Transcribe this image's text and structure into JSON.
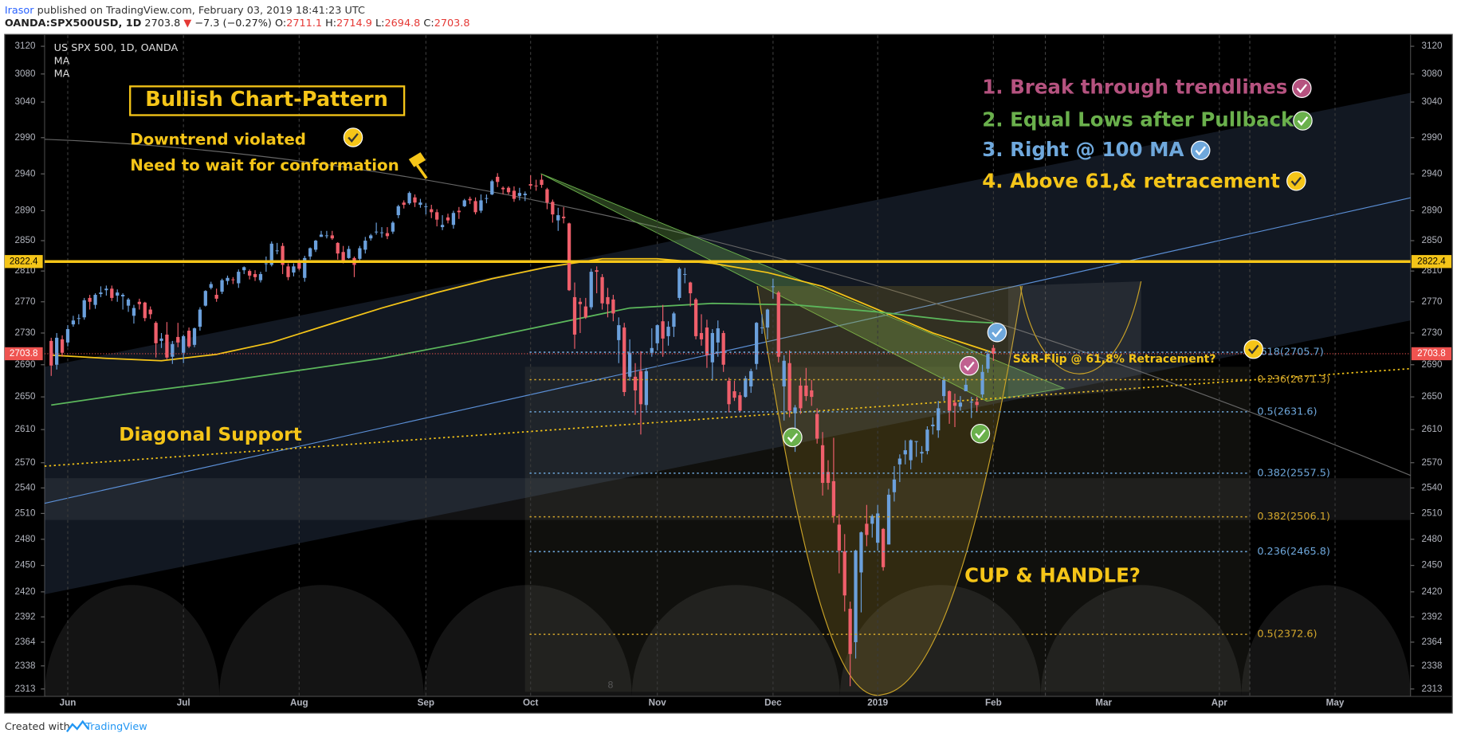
{
  "header": {
    "author": "Irasor",
    "published": "published on TradingView.com, February 03, 2019 18:41:23 UTC",
    "symbol": "OANDA:SPX500USD, 1D",
    "change_arrow": "▼",
    "change": "−7.3 (−0.27%)",
    "ohlc_labels": [
      "O:",
      "H:",
      "L:",
      "C:"
    ]
  },
  "footer": {
    "created": "Created with",
    "brand": "TradingView"
  },
  "chart_data": {
    "type": "candlestick",
    "legend_title": "US SPX 500, 1D, OANDA",
    "log": true,
    "up_color": "#6ba0dc",
    "down_color": "#ef5f6b",
    "xlim": [
      -1.2,
      246.7
    ],
    "xticks": [
      {
        "value": 3,
        "label": "Jun"
      },
      {
        "value": 24,
        "label": "Jul"
      },
      {
        "value": 45,
        "label": "Aug"
      },
      {
        "value": 68,
        "label": "Sep"
      },
      {
        "value": 87,
        "label": "Oct"
      },
      {
        "value": 110,
        "label": "Nov"
      },
      {
        "value": 131,
        "label": "Dec"
      },
      {
        "value": 150,
        "label": "2019"
      },
      {
        "value": 171,
        "label": "Feb"
      },
      {
        "value": 191,
        "label": "Mar"
      },
      {
        "value": 212,
        "label": "Apr"
      },
      {
        "value": 233,
        "label": "May"
      }
    ],
    "ylim": [
      2305,
      3136
    ],
    "yticks": [
      3120,
      3080,
      3040,
      2990,
      2940,
      2890,
      2850,
      2810,
      2770,
      2730,
      2690,
      2650,
      2610,
      2570,
      2540,
      2510,
      2480,
      2450,
      2420,
      2392,
      2364,
      2338,
      2313
    ],
    "open": [
      2720,
      2690,
      2722,
      2718,
      2741,
      2748,
      2750,
      2775,
      2766,
      2780,
      2785,
      2787,
      2778,
      2777,
      2765,
      2752,
      2770,
      2769,
      2760,
      2743,
      2720,
      2728,
      2700,
      2725,
      2705,
      2733,
      2715,
      2738,
      2765,
      2788,
      2779,
      2783,
      2797,
      2799,
      2794,
      2811,
      2810,
      2806,
      2798,
      2819,
      2818,
      2836,
      2843,
      2816,
      2808,
      2821,
      2801,
      2829,
      2838,
      2855,
      2856,
      2857,
      2847,
      2835,
      2827,
      2827,
      2826,
      2838,
      2853,
      2861,
      2860,
      2860,
      2862,
      2884,
      2901,
      2900,
      2908,
      2898,
      2896,
      2892,
      2888,
      2868,
      2881,
      2871,
      2890,
      2896,
      2906,
      2903,
      2890,
      2906,
      2912,
      2936,
      2921,
      2921,
      2917,
      2910,
      2911,
      2926,
      2924,
      2932,
      2919,
      2902,
      2877,
      2882,
      2873,
      2776,
      2770,
      2764,
      2763,
      2811,
      2802,
      2776,
      2773,
      2721,
      2737,
      2675,
      2675,
      2682,
      2640,
      2705,
      2717,
      2745,
      2726,
      2738,
      2775,
      2806,
      2795,
      2773,
      2730,
      2737,
      2693,
      2718,
      2730,
      2670,
      2657,
      2652,
      2650,
      2663,
      2691,
      2737,
      2737,
      2790,
      2782,
      2663,
      2692,
      2630,
      2664,
      2664,
      2658,
      2629,
      2591,
      2559,
      2548,
      2497,
      2466,
      2401,
      2364,
      2442,
      2498,
      2498,
      2476,
      2492,
      2474,
      2535,
      2568,
      2580,
      2573,
      2595,
      2581,
      2584,
      2614,
      2609,
      2651,
      2657,
      2643,
      2638,
      2657,
      2644,
      2644,
      2653,
      2685,
      2711.1
    ],
    "high": [
      2724,
      2730,
      2727,
      2740,
      2752,
      2754,
      2775,
      2779,
      2781,
      2790,
      2791,
      2791,
      2786,
      2781,
      2775,
      2766,
      2774,
      2770,
      2764,
      2745,
      2730,
      2744,
      2720,
      2743,
      2728,
      2737,
      2737,
      2763,
      2785,
      2796,
      2787,
      2800,
      2804,
      2802,
      2812,
      2816,
      2812,
      2811,
      2809,
      2829,
      2849,
      2847,
      2847,
      2820,
      2820,
      2825,
      2830,
      2841,
      2851,
      2863,
      2863,
      2863,
      2848,
      2843,
      2843,
      2829,
      2843,
      2855,
      2859,
      2874,
      2868,
      2868,
      2876,
      2898,
      2904,
      2916,
      2912,
      2906,
      2900,
      2898,
      2892,
      2884,
      2886,
      2890,
      2895,
      2906,
      2909,
      2908,
      2912,
      2912,
      2932,
      2941,
      2923,
      2923,
      2923,
      2921,
      2916,
      2938,
      2932,
      2939,
      2921,
      2905,
      2894,
      2895,
      2874,
      2795,
      2775,
      2775,
      2813,
      2816,
      2806,
      2788,
      2779,
      2750,
      2743,
      2722,
      2692,
      2707,
      2686,
      2736,
      2741,
      2766,
      2745,
      2757,
      2815,
      2814,
      2796,
      2775,
      2754,
      2747,
      2735,
      2746,
      2733,
      2674,
      2670,
      2656,
      2676,
      2685,
      2744,
      2754,
      2761,
      2800,
      2784,
      2702,
      2708,
      2640,
      2674,
      2686,
      2671,
      2636,
      2607,
      2573,
      2600,
      2509,
      2486,
      2409,
      2468,
      2489,
      2520,
      2509,
      2520,
      2493,
      2539,
      2566,
      2580,
      2597,
      2598,
      2596,
      2590,
      2614,
      2625,
      2645,
      2675,
      2658,
      2654,
      2651,
      2673,
      2650,
      2650,
      2690,
      2708,
      2714.9
    ],
    "low": [
      2676,
      2684,
      2700,
      2713,
      2738,
      2741,
      2747,
      2760,
      2761,
      2776,
      2778,
      2771,
      2770,
      2760,
      2757,
      2742,
      2760,
      2745,
      2748,
      2699,
      2711,
      2697,
      2691,
      2712,
      2692,
      2711,
      2712,
      2733,
      2764,
      2786,
      2770,
      2780,
      2792,
      2793,
      2788,
      2806,
      2799,
      2797,
      2795,
      2809,
      2816,
      2832,
      2806,
      2798,
      2803,
      2811,
      2796,
      2825,
      2835,
      2855,
      2853,
      2851,
      2825,
      2820,
      2826,
      2802,
      2822,
      2833,
      2850,
      2858,
      2854,
      2852,
      2859,
      2880,
      2893,
      2898,
      2895,
      2894,
      2885,
      2880,
      2869,
      2864,
      2873,
      2866,
      2879,
      2895,
      2899,
      2885,
      2887,
      2900,
      2911,
      2922,
      2912,
      2912,
      2902,
      2904,
      2903,
      2919,
      2917,
      2921,
      2892,
      2874,
      2863,
      2873,
      2784,
      2710,
      2730,
      2748,
      2760,
      2781,
      2760,
      2750,
      2745,
      2692,
      2651,
      2670,
      2628,
      2604,
      2633,
      2700,
      2708,
      2700,
      2714,
      2725,
      2772,
      2794,
      2764,
      2722,
      2714,
      2686,
      2670,
      2700,
      2681,
      2631,
      2645,
      2631,
      2649,
      2655,
      2684,
      2729,
      2722,
      2774,
      2693,
      2621,
      2625,
      2583,
      2629,
      2645,
      2639,
      2593,
      2531,
      2538,
      2499,
      2441,
      2398,
      2316,
      2346,
      2397,
      2472,
      2482,
      2467,
      2444,
      2474,
      2524,
      2547,
      2568,
      2562,
      2577,
      2570,
      2580,
      2604,
      2600,
      2645,
      2617,
      2613,
      2633,
      2657,
      2624,
      2631,
      2649,
      2680,
      2694.8
    ],
    "close": [
      2689,
      2724,
      2705,
      2735,
      2746,
      2749,
      2772,
      2770,
      2779,
      2782,
      2787,
      2775,
      2782,
      2779,
      2773,
      2762,
      2767,
      2749,
      2754,
      2717,
      2723,
      2699,
      2716,
      2718,
      2726,
      2713,
      2736,
      2760,
      2784,
      2793,
      2774,
      2798,
      2801,
      2798,
      2809,
      2815,
      2804,
      2802,
      2806,
      2820,
      2846,
      2837,
      2818,
      2802,
      2816,
      2813,
      2827,
      2840,
      2850,
      2858,
      2857,
      2853,
      2833,
      2821,
      2839,
      2818,
      2840,
      2850,
      2857,
      2862,
      2861,
      2856,
      2874,
      2896,
      2898,
      2914,
      2901,
      2901,
      2896,
      2888,
      2878,
      2871,
      2877,
      2887,
      2888,
      2904,
      2904,
      2888,
      2904,
      2907,
      2930,
      2929,
      2919,
      2915,
      2906,
      2914,
      2913,
      2924,
      2923,
      2925,
      2901,
      2885,
      2884,
      2880,
      2785,
      2728,
      2767,
      2750,
      2809,
      2809,
      2768,
      2767,
      2755,
      2740,
      2656,
      2705,
      2658,
      2641,
      2682,
      2711,
      2740,
      2723,
      2738,
      2755,
      2813,
      2806,
      2781,
      2726,
      2722,
      2702,
      2730,
      2736,
      2690,
      2641,
      2649,
      2633,
      2673,
      2682,
      2743,
      2737,
      2760,
      2790,
      2700,
      2695,
      2633,
      2637,
      2636,
      2651,
      2650,
      2599,
      2546,
      2546,
      2507,
      2467,
      2416,
      2351,
      2467,
      2488,
      2485,
      2507,
      2510,
      2448,
      2532,
      2550,
      2575,
      2585,
      2597,
      2596,
      2583,
      2610,
      2616,
      2636,
      2671,
      2633,
      2639,
      2643,
      2665,
      2644,
      2640,
      2681,
      2704,
      2703.8
    ],
    "ma": [
      {
        "name": "MA",
        "color": "#f5c518",
        "x": [
          0,
          10,
          20,
          30,
          40,
          50,
          60,
          70,
          80,
          90,
          100,
          110,
          120,
          130,
          140,
          150,
          160,
          171
        ],
        "values": [
          2702,
          2698,
          2695,
          2703,
          2718,
          2740,
          2762,
          2782,
          2800,
          2815,
          2826,
          2826,
          2820,
          2808,
          2790,
          2760,
          2730,
          2705
        ]
      },
      {
        "name": "MA",
        "color": "#5cb85c",
        "x": [
          0,
          15,
          30,
          45,
          60,
          75,
          90,
          105,
          120,
          135,
          150,
          165,
          171
        ],
        "values": [
          2640,
          2655,
          2668,
          2683,
          2698,
          2718,
          2740,
          2762,
          2768,
          2766,
          2757,
          2745,
          2743
        ]
      }
    ],
    "price_lines": [
      {
        "value": 2822.4,
        "color": "#f5c518",
        "label_color": "#000",
        "width": 3,
        "dash": "none"
      },
      {
        "value": 2703.8,
        "color": "#ef5350",
        "label_color": "#fff",
        "width": 1,
        "dash": "1,2"
      }
    ],
    "fib_levels": [
      {
        "value": 2705.7,
        "label": ".618(2705.7)",
        "color": "#6fa8dc"
      },
      {
        "value": 2671.3,
        "label": "0.236(2671.3)",
        "color": "#d4a72c"
      },
      {
        "value": 2631.6,
        "label": "0.5(2631.6)",
        "color": "#6fa8dc"
      },
      {
        "value": 2557.5,
        "label": "0.382(2557.5)",
        "color": "#6fa8dc"
      },
      {
        "value": 2506.1,
        "label": "0.382(2506.1)",
        "color": "#d4a72c"
      },
      {
        "value": 2465.8,
        "label": "0.236(2465.8)",
        "color": "#6fa8dc"
      },
      {
        "value": 2372.6,
        "label": "0.5(2372.6)",
        "color": "#d4a72c"
      }
    ],
    "annotations": [
      {
        "text": "Bullish Chart-Pattern",
        "color": "#f5c518"
      },
      {
        "text": "Downtrend violated",
        "color": "#f5c518"
      },
      {
        "text": "Need to wait for conformation",
        "color": "#f5c518"
      },
      {
        "text": "Diagonal Support",
        "color": "#f5c518"
      },
      {
        "text": "1. Break through trendlines",
        "color": "#b5527f"
      },
      {
        "text": "2. Equal Lows after Pullback",
        "color": "#6ab04c"
      },
      {
        "text": "3. Right @ 100 MA",
        "color": "#6fa8dc"
      },
      {
        "text": "4. Above 61,& retracement",
        "color": "#f5c518"
      },
      {
        "text": "S&R-Flip @ 61,8% Retracement?",
        "color": "#f5c518"
      },
      {
        "text": "CUP & HANDLE?",
        "color": "#f5c518"
      },
      {
        "text": "8",
        "color": "#555"
      }
    ]
  }
}
